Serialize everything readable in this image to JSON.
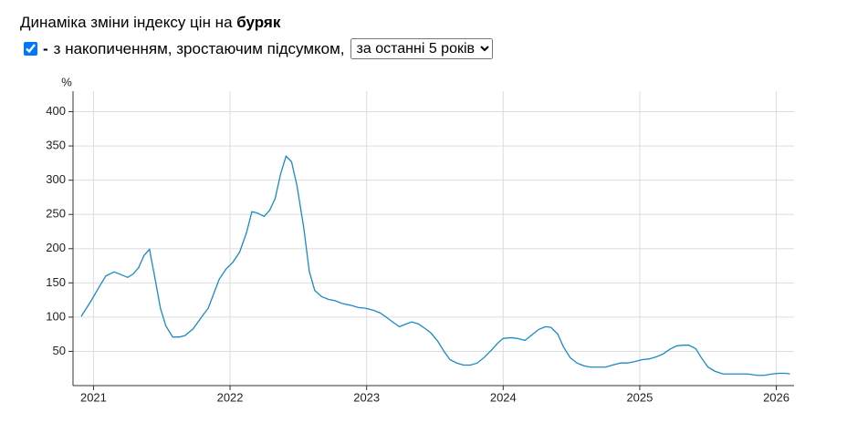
{
  "header": {
    "title": "Динаміка зміни індексу цін на",
    "product": "буряк"
  },
  "controls": {
    "checked": true,
    "dash": "-",
    "text": "з накопиченням, зростаючим підсумком,",
    "period_options": [
      "за останні 5 років"
    ]
  },
  "chart_data": {
    "type": "line",
    "y_label": "%",
    "color": "#1a8ac6",
    "grid": true,
    "xlim": [
      2020.85,
      2026.13
    ],
    "xticks": [
      2021,
      2022,
      2023,
      2024,
      2025,
      2026
    ],
    "ylim": [
      0,
      430
    ],
    "yticks": [
      50,
      100,
      150,
      200,
      250,
      300,
      350,
      400
    ],
    "x": [
      2020.91,
      2020.98,
      2021.05,
      2021.09,
      2021.15,
      2021.19,
      2021.25,
      2021.29,
      2021.33,
      2021.37,
      2021.41,
      2021.45,
      2021.49,
      2021.53,
      2021.58,
      2021.63,
      2021.67,
      2021.73,
      2021.78,
      2021.84,
      2021.88,
      2021.92,
      2021.97,
      2022.02,
      2022.07,
      2022.12,
      2022.16,
      2022.2,
      2022.25,
      2022.29,
      2022.33,
      2022.37,
      2022.41,
      2022.45,
      2022.49,
      2022.54,
      2022.58,
      2022.62,
      2022.67,
      2022.72,
      2022.77,
      2022.82,
      2022.89,
      2022.94,
      2022.99,
      2023.05,
      2023.1,
      2023.15,
      2023.19,
      2023.24,
      2023.29,
      2023.33,
      2023.38,
      2023.43,
      2023.47,
      2023.52,
      2023.57,
      2023.61,
      2023.66,
      2023.71,
      2023.76,
      2023.81,
      2023.86,
      2023.91,
      2023.96,
      2024.0,
      2024.06,
      2024.1,
      2024.16,
      2024.21,
      2024.26,
      2024.31,
      2024.35,
      2024.4,
      2024.44,
      2024.49,
      2024.54,
      2024.59,
      2024.64,
      2024.7,
      2024.75,
      2024.8,
      2024.86,
      2024.91,
      2024.96,
      2025.02,
      2025.07,
      2025.12,
      2025.17,
      2025.22,
      2025.27,
      2025.31,
      2025.36,
      2025.41,
      2025.45,
      2025.5,
      2025.55,
      2025.61,
      2025.66,
      2025.73,
      2025.79,
      2025.86,
      2025.91,
      2025.97,
      2026.02,
      2026.07,
      2026.1
    ],
    "values": [
      101,
      123,
      147,
      160,
      166,
      163,
      158,
      163,
      172,
      190,
      199,
      157,
      113,
      87,
      71,
      71,
      73,
      83,
      97,
      113,
      134,
      155,
      170,
      180,
      195,
      223,
      254,
      252,
      247,
      256,
      273,
      309,
      335,
      327,
      292,
      230,
      167,
      139,
      130,
      126,
      124,
      120,
      117,
      114,
      113,
      110,
      106,
      99,
      93,
      86,
      90,
      93,
      90,
      83,
      77,
      65,
      49,
      38,
      33,
      30,
      30,
      33,
      41,
      51,
      62,
      69,
      70,
      69,
      66,
      74,
      82,
      86,
      85,
      75,
      57,
      41,
      33,
      29,
      27,
      27,
      27,
      30,
      33,
      33,
      35,
      38,
      39,
      42,
      46,
      53,
      58,
      59,
      59,
      54,
      41,
      27,
      21,
      17,
      17,
      17,
      17,
      15,
      15,
      17,
      18,
      18,
      17
    ]
  }
}
